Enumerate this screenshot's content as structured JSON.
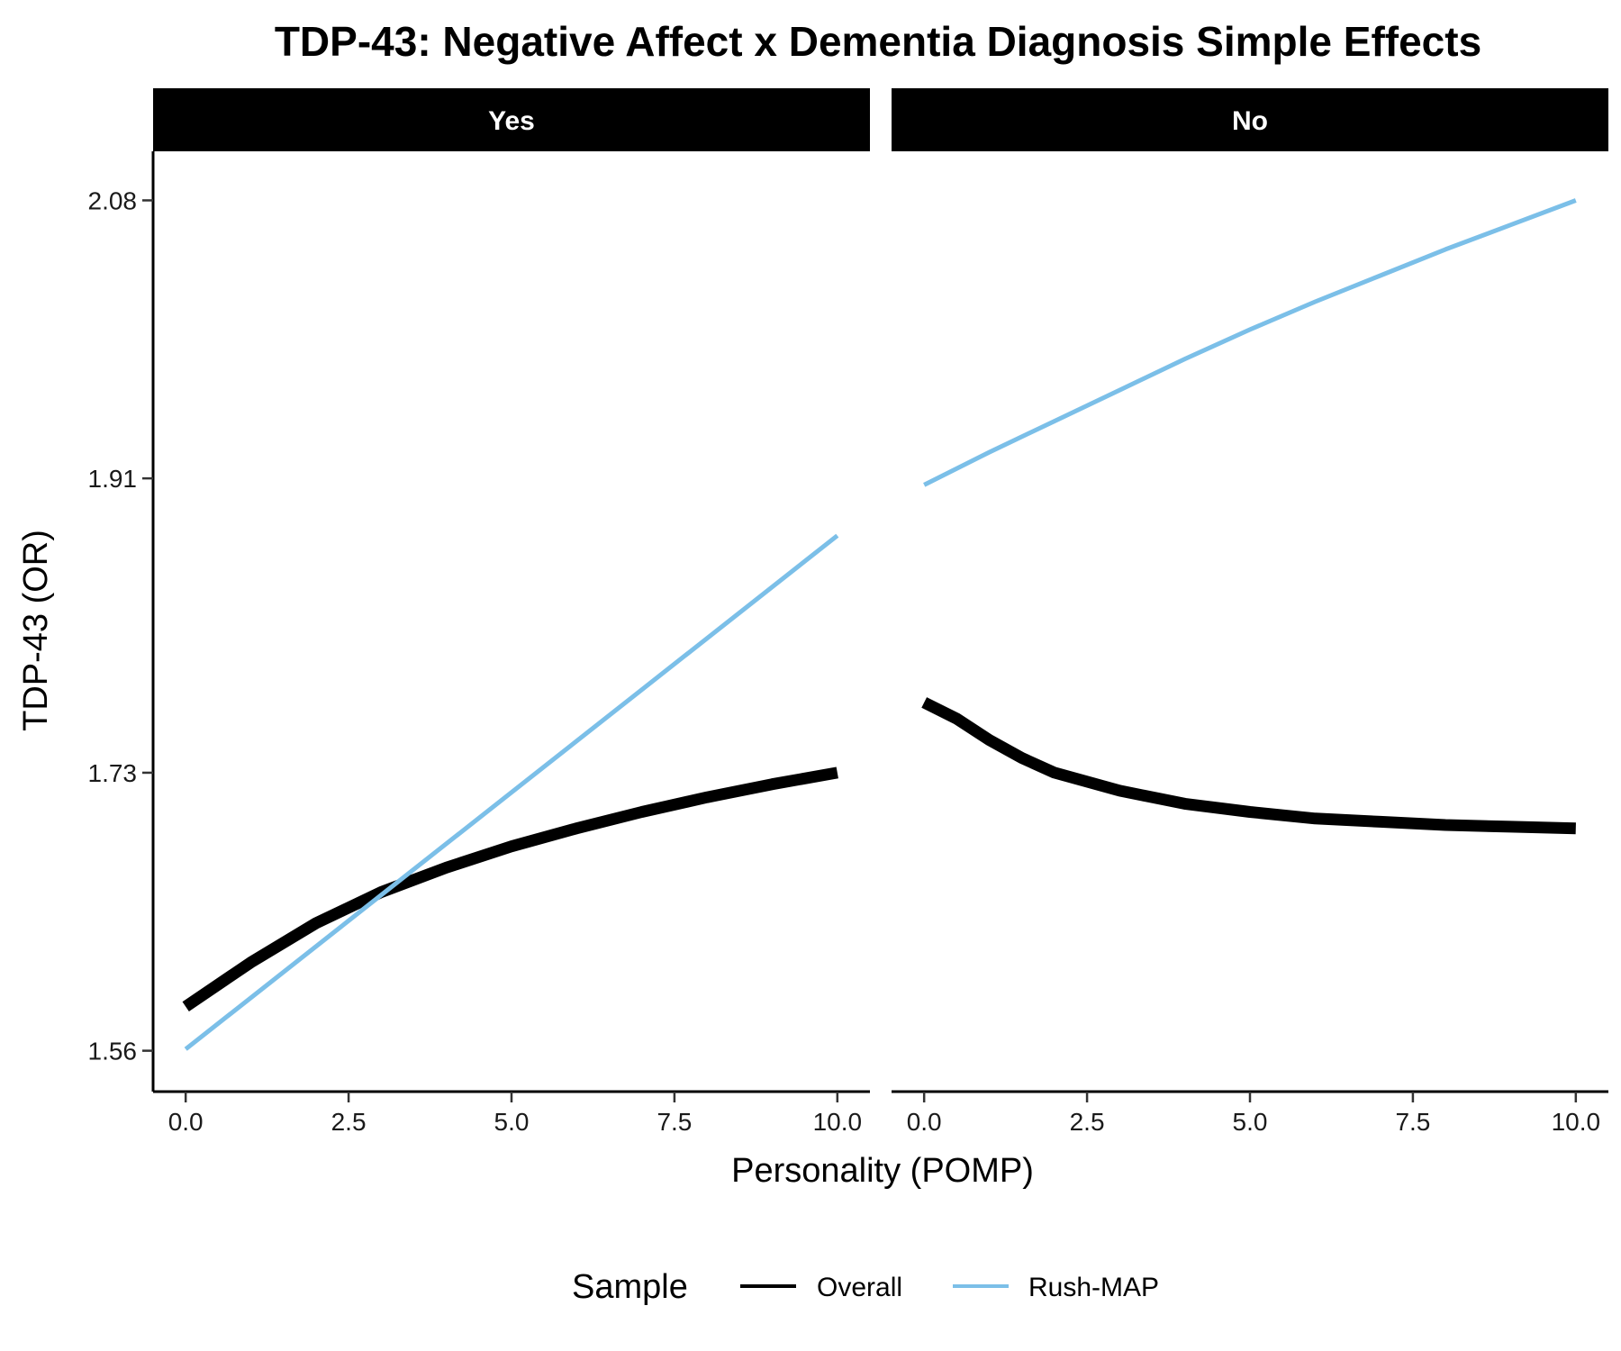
{
  "chart_data": {
    "type": "line",
    "title": "TDP-43: Negative Affect x Dementia Diagnosis Simple Effects",
    "xlabel": "Personality (POMP)",
    "ylabel": "TDP-43 (OR)",
    "xlim": [
      -0.5,
      10.5
    ],
    "ylim": [
      1.535,
      2.11
    ],
    "x_ticks": [
      0,
      2.5,
      5,
      7.5,
      10
    ],
    "x_tick_labels": [
      "0.0",
      "2.5",
      "5.0",
      "7.5",
      "10.0"
    ],
    "y_ticks": [
      1.56,
      1.73,
      1.91,
      2.08
    ],
    "y_tick_labels": [
      "1.56",
      "1.73",
      "1.91",
      "2.08"
    ],
    "grid": false,
    "legend": {
      "title": "Sample",
      "position": "bottom"
    },
    "series_styles": [
      {
        "name": "Overall",
        "color": "#000000"
      },
      {
        "name": "Rush-MAP",
        "color": "#7BBFE8"
      }
    ],
    "panels": [
      {
        "label": "Yes",
        "series": [
          {
            "name": "Overall",
            "x": [
              0,
              1,
              2,
              3,
              4,
              5,
              6,
              7,
              8,
              9,
              10
            ],
            "values": [
              1.587,
              1.614,
              1.638,
              1.657,
              1.672,
              1.685,
              1.696,
              1.706,
              1.715,
              1.723,
              1.73
            ]
          },
          {
            "name": "Rush-MAP",
            "x": [
              0,
              10
            ],
            "values": [
              1.561,
              1.875
            ]
          }
        ]
      },
      {
        "label": "No",
        "series": [
          {
            "name": "Overall",
            "x": [
              0,
              0.5,
              1,
              1.5,
              2,
              3,
              4,
              5,
              6,
              7,
              8,
              9,
              10
            ],
            "values": [
              1.773,
              1.763,
              1.75,
              1.739,
              1.73,
              1.719,
              1.711,
              1.706,
              1.702,
              1.7,
              1.698,
              1.697,
              1.696
            ]
          },
          {
            "name": "Rush-MAP",
            "x": [
              0,
              1,
              2,
              3,
              4,
              5,
              6,
              7,
              8,
              9,
              10
            ],
            "values": [
              1.906,
              1.926,
              1.945,
              1.964,
              1.983,
              2.001,
              2.018,
              2.034,
              2.05,
              2.065,
              2.08
            ]
          }
        ]
      }
    ]
  }
}
